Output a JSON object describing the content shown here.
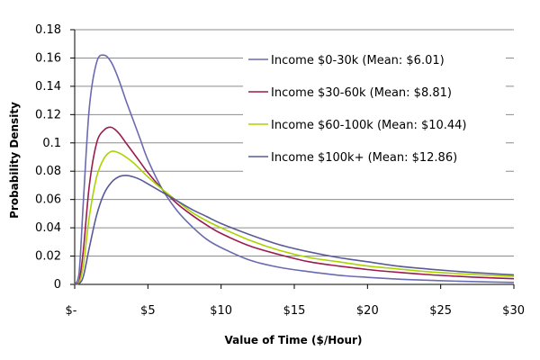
{
  "chart_data": {
    "type": "line",
    "title": "",
    "xlabel": "Value of Time ($/Hour)",
    "ylabel": "Probability Density",
    "xlim": [
      0,
      30
    ],
    "ylim": [
      0,
      0.18
    ],
    "x_ticks": [
      0,
      5,
      10,
      15,
      20,
      25,
      30
    ],
    "x_tick_labels": [
      "$-",
      "$5",
      "$10",
      "$15",
      "$20",
      "$25",
      "$30"
    ],
    "y_ticks": [
      0,
      0.02,
      0.04,
      0.06,
      0.08,
      0.1,
      0.12,
      0.14,
      0.16,
      0.18
    ],
    "y_tick_labels": [
      "0",
      "0.02",
      "0.04",
      "0.06",
      "0.08",
      "0.1",
      "0.12",
      "0.14",
      "0.16",
      "0.18"
    ],
    "grid": "horizontal",
    "legend_position": "top-right",
    "x": [
      0,
      0.3,
      0.6,
      1,
      1.5,
      2,
      2.5,
      3,
      3.5,
      4,
      4.5,
      5,
      6,
      7,
      8,
      9,
      10,
      12,
      14,
      16,
      18,
      20,
      22,
      24,
      26,
      28,
      30
    ],
    "series": [
      {
        "name": "Income $0-30k (Mean: $6.01)",
        "color": "#6a6ab0",
        "values": [
          0,
          0.008,
          0.06,
          0.125,
          0.157,
          0.162,
          0.157,
          0.145,
          0.13,
          0.116,
          0.102,
          0.088,
          0.067,
          0.052,
          0.041,
          0.032,
          0.026,
          0.017,
          0.012,
          0.009,
          0.0065,
          0.005,
          0.0038,
          0.003,
          0.0023,
          0.0018,
          0.0014
        ]
      },
      {
        "name": "Income $30-60k (Mean: $8.81)",
        "color": "#9b1a4f",
        "values": [
          0,
          0.002,
          0.025,
          0.07,
          0.1,
          0.109,
          0.111,
          0.107,
          0.1,
          0.093,
          0.086,
          0.079,
          0.067,
          0.057,
          0.049,
          0.042,
          0.036,
          0.027,
          0.021,
          0.016,
          0.013,
          0.0105,
          0.0086,
          0.007,
          0.0058,
          0.0048,
          0.004
        ]
      },
      {
        "name": "Income $60-100k (Mean: $10.44)",
        "color": "#aad400",
        "values": [
          0,
          0.001,
          0.014,
          0.048,
          0.076,
          0.089,
          0.094,
          0.093,
          0.09,
          0.086,
          0.081,
          0.076,
          0.067,
          0.059,
          0.051,
          0.045,
          0.04,
          0.031,
          0.024,
          0.019,
          0.016,
          0.013,
          0.011,
          0.009,
          0.0077,
          0.0066,
          0.0057
        ]
      },
      {
        "name": "Income $100k+ (Mean: $12.86)",
        "color": "#5a5a98",
        "values": [
          0,
          0.0005,
          0.006,
          0.026,
          0.049,
          0.064,
          0.072,
          0.076,
          0.077,
          0.076,
          0.074,
          0.071,
          0.065,
          0.059,
          0.053,
          0.048,
          0.043,
          0.035,
          0.028,
          0.023,
          0.019,
          0.016,
          0.013,
          0.011,
          0.0093,
          0.0079,
          0.0067
        ]
      }
    ]
  }
}
